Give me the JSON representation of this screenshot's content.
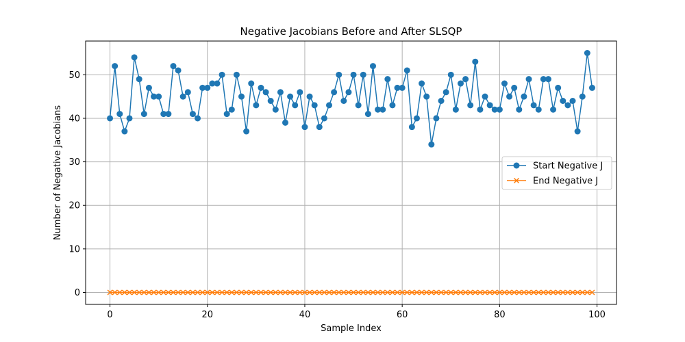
{
  "chart_data": {
    "type": "line",
    "title": "Negative Jacobians Before and After SLSQP",
    "xlabel": "Sample Index",
    "ylabel": "Number of Negative Jacobians",
    "xlim": [
      -5,
      104
    ],
    "ylim": [
      -2.75,
      57.75
    ],
    "xticks": [
      0,
      20,
      40,
      60,
      80,
      100
    ],
    "yticks": [
      0,
      10,
      20,
      30,
      40,
      50
    ],
    "grid": true,
    "legend_position": "center-right",
    "series": [
      {
        "name": "Start Negative J",
        "color": "#1f77b4",
        "marker": "circle",
        "x": [
          0,
          1,
          2,
          3,
          4,
          5,
          6,
          7,
          8,
          9,
          10,
          11,
          12,
          13,
          14,
          15,
          16,
          17,
          18,
          19,
          20,
          21,
          22,
          23,
          24,
          25,
          26,
          27,
          28,
          29,
          30,
          31,
          32,
          33,
          34,
          35,
          36,
          37,
          38,
          39,
          40,
          41,
          42,
          43,
          44,
          45,
          46,
          47,
          48,
          49,
          50,
          51,
          52,
          53,
          54,
          55,
          56,
          57,
          58,
          59,
          60,
          61,
          62,
          63,
          64,
          65,
          66,
          67,
          68,
          69,
          70,
          71,
          72,
          73,
          74,
          75,
          76,
          77,
          78,
          79,
          80,
          81,
          82,
          83,
          84,
          85,
          86,
          87,
          88,
          89,
          90,
          91,
          92,
          93,
          94,
          95,
          96,
          97,
          98,
          99
        ],
        "values": [
          40,
          52,
          41,
          37,
          40,
          54,
          49,
          41,
          47,
          45,
          45,
          41,
          41,
          52,
          51,
          45,
          46,
          41,
          40,
          47,
          47,
          48,
          48,
          50,
          41,
          42,
          50,
          45,
          37,
          48,
          43,
          47,
          46,
          44,
          42,
          46,
          39,
          45,
          43,
          46,
          38,
          45,
          43,
          38,
          40,
          43,
          46,
          50,
          44,
          46,
          50,
          43,
          50,
          41,
          52,
          42,
          42,
          49,
          43,
          47,
          47,
          51,
          38,
          40,
          48,
          45,
          34,
          40,
          44,
          46,
          50,
          42,
          48,
          49,
          43,
          53,
          42,
          45,
          43,
          42,
          42,
          48,
          45,
          47,
          42,
          45,
          49,
          43,
          42,
          49,
          49,
          42,
          47,
          44,
          43,
          44,
          37,
          45,
          55,
          47
        ]
      },
      {
        "name": "End Negative J",
        "color": "#ff7f0e",
        "marker": "x",
        "x": [
          0,
          1,
          2,
          3,
          4,
          5,
          6,
          7,
          8,
          9,
          10,
          11,
          12,
          13,
          14,
          15,
          16,
          17,
          18,
          19,
          20,
          21,
          22,
          23,
          24,
          25,
          26,
          27,
          28,
          29,
          30,
          31,
          32,
          33,
          34,
          35,
          36,
          37,
          38,
          39,
          40,
          41,
          42,
          43,
          44,
          45,
          46,
          47,
          48,
          49,
          50,
          51,
          52,
          53,
          54,
          55,
          56,
          57,
          58,
          59,
          60,
          61,
          62,
          63,
          64,
          65,
          66,
          67,
          68,
          69,
          70,
          71,
          72,
          73,
          74,
          75,
          76,
          77,
          78,
          79,
          80,
          81,
          82,
          83,
          84,
          85,
          86,
          87,
          88,
          89,
          90,
          91,
          92,
          93,
          94,
          95,
          96,
          97,
          98,
          99
        ],
        "values": [
          0,
          0,
          0,
          0,
          0,
          0,
          0,
          0,
          0,
          0,
          0,
          0,
          0,
          0,
          0,
          0,
          0,
          0,
          0,
          0,
          0,
          0,
          0,
          0,
          0,
          0,
          0,
          0,
          0,
          0,
          0,
          0,
          0,
          0,
          0,
          0,
          0,
          0,
          0,
          0,
          0,
          0,
          0,
          0,
          0,
          0,
          0,
          0,
          0,
          0,
          0,
          0,
          0,
          0,
          0,
          0,
          0,
          0,
          0,
          0,
          0,
          0,
          0,
          0,
          0,
          0,
          0,
          0,
          0,
          0,
          0,
          0,
          0,
          0,
          0,
          0,
          0,
          0,
          0,
          0,
          0,
          0,
          0,
          0,
          0,
          0,
          0,
          0,
          0,
          0,
          0,
          0,
          0,
          0,
          0,
          0,
          0,
          0,
          0,
          0
        ]
      }
    ]
  }
}
